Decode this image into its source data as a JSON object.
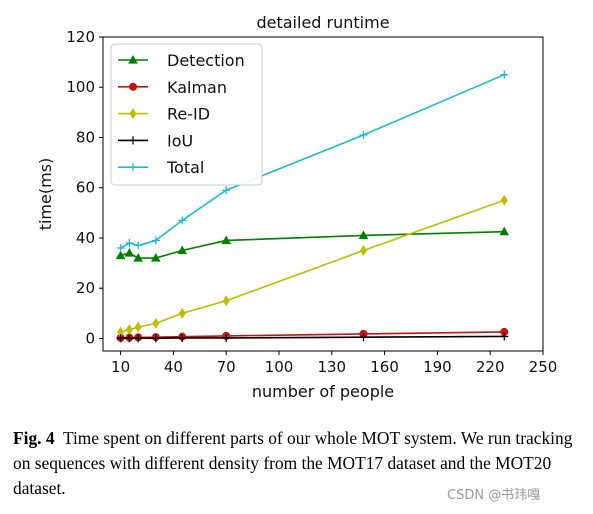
{
  "chart_data": {
    "type": "line",
    "title": "detailed runtime",
    "xlabel": "number of people",
    "ylabel": "time(ms)",
    "xlim": [
      0,
      250
    ],
    "ylim": [
      -5,
      120
    ],
    "xticks": [
      10,
      40,
      70,
      100,
      130,
      160,
      190,
      220,
      250
    ],
    "yticks": [
      0,
      20,
      40,
      60,
      80,
      100,
      120
    ],
    "legend_position": "top-left",
    "grid": false,
    "x": [
      10,
      15,
      20,
      30,
      45,
      70,
      148,
      228
    ],
    "series": [
      {
        "name": "Detection",
        "color": "#008000",
        "marker": "triangle",
        "values": [
          33,
          34,
          32,
          32,
          35,
          39,
          41,
          42.5
        ]
      },
      {
        "name": "Kalman",
        "color": "#cc1111",
        "marker": "circle",
        "values": [
          0.2,
          0.3,
          0.4,
          0.5,
          0.7,
          1.0,
          1.8,
          2.6
        ]
      },
      {
        "name": "Re-ID",
        "color": "#bfbf00",
        "marker": "diamond",
        "values": [
          2.5,
          3.5,
          4.5,
          6,
          10,
          15,
          35,
          55
        ]
      },
      {
        "name": "IoU",
        "color": "#000000",
        "marker": "plus",
        "values": [
          0.1,
          0.1,
          0.1,
          0.1,
          0.2,
          0.2,
          0.5,
          0.8
        ]
      },
      {
        "name": "Total",
        "color": "#17becf",
        "marker": "plus",
        "values": [
          36,
          38,
          37,
          39,
          47,
          59,
          81,
          105
        ]
      }
    ]
  },
  "caption": {
    "lead": "Fig. 4",
    "text": "Time spent on different parts of our whole MOT system. We run tracking on sequences with different density from the MOT17 dataset and the MOT20 dataset."
  },
  "watermark": "CSDN @书玮嘎"
}
